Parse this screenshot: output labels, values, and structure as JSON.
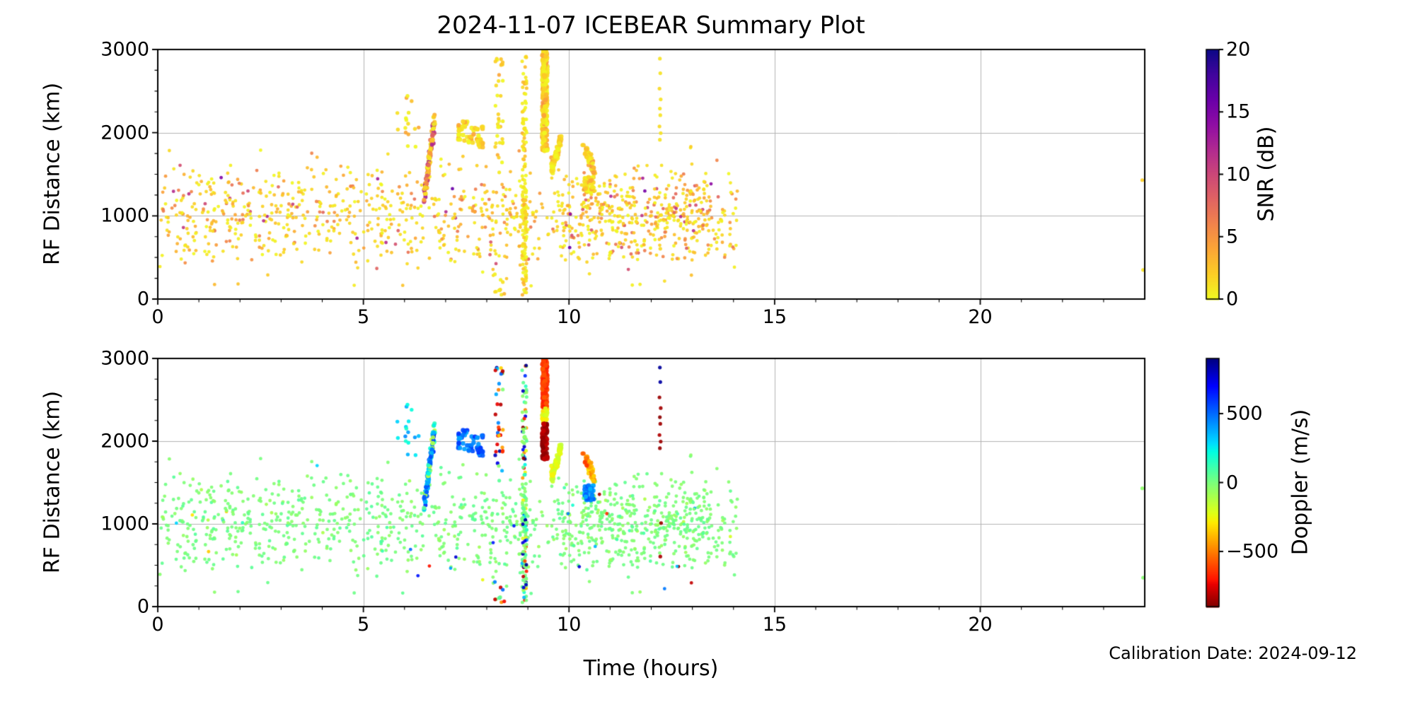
{
  "title": "2024-11-07 ICEBEAR Summary Plot",
  "footer": {
    "calibration_note": "Calibration Date: 2024-09-12"
  },
  "chart_data": {
    "type": "scatter",
    "title": "2024-11-07 ICEBEAR Summary Plot",
    "xlabel": "Time (hours)",
    "x": {
      "lim": [
        0,
        24
      ],
      "major_ticks": [
        0,
        5,
        10,
        15,
        20
      ],
      "minor_step": 1
    },
    "grid": true,
    "panels": [
      {
        "name": "snr",
        "ylabel": "RF Distance (km)",
        "ylim": [
          0,
          3000
        ],
        "yticks": [
          0,
          1000,
          2000,
          3000
        ],
        "y_minor_step": 250,
        "color_by": "snr",
        "colorbar": {
          "label": "SNR (dB)",
          "clim": [
            0,
            20
          ],
          "ticks": [
            0,
            5,
            10,
            15,
            20
          ],
          "colormap": "plasma_r"
        }
      },
      {
        "name": "doppler",
        "ylabel": "RF Distance (km)",
        "ylim": [
          0,
          3000
        ],
        "yticks": [
          0,
          1000,
          2000,
          3000
        ],
        "y_minor_step": 250,
        "color_by": "doppler",
        "colorbar": {
          "label": "Doppler (m/s)",
          "clim": [
            -900,
            900
          ],
          "ticks": [
            -500,
            0,
            500
          ],
          "colormap": "jet_r"
        }
      }
    ],
    "colormaps": {
      "plasma": [
        [
          0,
          "#0d0887"
        ],
        [
          0.1,
          "#41049d"
        ],
        [
          0.2,
          "#6a00a8"
        ],
        [
          0.3,
          "#8f0da4"
        ],
        [
          0.4,
          "#b12a90"
        ],
        [
          0.5,
          "#cc4778"
        ],
        [
          0.6,
          "#e16462"
        ],
        [
          0.7,
          "#f2844b"
        ],
        [
          0.8,
          "#fca636"
        ],
        [
          0.9,
          "#fcce25"
        ],
        [
          1,
          "#f0f921"
        ]
      ],
      "jet": [
        [
          0,
          "#000080"
        ],
        [
          0.11,
          "#0000ff"
        ],
        [
          0.34,
          "#00dbff"
        ],
        [
          0.375,
          "#00ffe2"
        ],
        [
          0.5,
          "#7bff7b"
        ],
        [
          0.625,
          "#e2ff14"
        ],
        [
          0.66,
          "#ffec00"
        ],
        [
          0.89,
          "#ff1300"
        ],
        [
          0.91,
          "#e80000"
        ],
        [
          1,
          "#800000"
        ]
      ]
    },
    "seed": 20241107,
    "features": [
      {
        "name": "main-band",
        "count": 950,
        "t": [
          0.05,
          14.1
        ],
        "rf": {
          "tri": [
            330,
            1000,
            1680
          ],
          "out": {
            "frac": 0.1,
            "u": [
              150,
              1850
            ]
          }
        },
        "snr": {
          "exp": [
            2.5,
            16
          ]
        },
        "dop": {
          "gauss": [
            0,
            35
          ],
          "out": {
            "frac": 0.02,
            "u": [
              -420,
              420
            ]
          }
        },
        "r": 2.4
      },
      {
        "name": "late-band",
        "count": 240,
        "t": [
          9.85,
          13.5
        ],
        "rf": {
          "tri": [
            380,
            950,
            1650
          ]
        },
        "snr": {
          "exp": [
            3,
            14
          ]
        },
        "dop": {
          "gauss": [
            0,
            35
          ]
        },
        "r": 2.4
      },
      {
        "name": "slant-streak-6p6",
        "count": 140,
        "t": [
          6.47,
          6.74
        ],
        "rf": {
          "lin": [
            1190,
            2170,
            65
          ]
        },
        "snr": {
          "mix": [
            {
              "w": 0.65,
              "exp": [
                2.5,
                6
              ]
            },
            {
              "w": 0.35,
              "u": [
                6,
                13
              ]
            }
          ]
        },
        "dop": {
          "mix": [
            {
              "w": 0.6,
              "u": [
                320,
                640
              ]
            },
            {
              "w": 0.25,
              "u": [
                80,
                300
              ]
            },
            {
              "w": 0.15,
              "u": [
                -200,
                60
              ]
            }
          ]
        },
        "r": 3
      },
      {
        "name": "high-cluster-6p1",
        "count": 16,
        "t": [
          5.8,
          6.35
        ],
        "rf": {
          "u": [
            1830,
            2480
          ]
        },
        "snr": {
          "exp": [
            1.5,
            4
          ]
        },
        "dop": {
          "u": [
            150,
            450
          ]
        },
        "r": 2.7
      },
      {
        "name": "blue-blobs-7p4",
        "count": 25,
        "t": [
          7.3,
          7.55
        ],
        "rf": {
          "u": [
            1900,
            2140
          ]
        },
        "snr": {
          "exp": [
            1.5,
            4
          ]
        },
        "dop": {
          "u": [
            380,
            620
          ]
        },
        "r": 3.2
      },
      {
        "name": "blue-blobs-7p7",
        "count": 30,
        "t": [
          7.55,
          7.92
        ],
        "rf": {
          "u": [
            1820,
            2070
          ]
        },
        "snr": {
          "exp": [
            1.5,
            4
          ]
        },
        "dop": {
          "u": [
            380,
            620
          ]
        },
        "r": 3.2
      },
      {
        "name": "mixed-column-8p3",
        "count": 34,
        "t": [
          8.2,
          8.4
        ],
        "rf": {
          "u": [
            1500,
            2950
          ]
        },
        "snr": {
          "exp": [
            1.5,
            4
          ]
        },
        "dop": {
          "mix": [
            {
              "w": 0.5,
              "u": [
                -880,
                -620
              ]
            },
            {
              "w": 0.12,
              "u": [
                -500,
                -250
              ]
            },
            {
              "w": 0.12,
              "u": [
                320,
                520
              ]
            },
            {
              "w": 0.14,
              "u": [
                700,
                880
              ]
            },
            {
              "w": 0.12,
              "u": [
                -80,
                80
              ]
            }
          ]
        },
        "r": 2.6
      },
      {
        "name": "mixed-column-8p3-low",
        "count": 10,
        "t": [
          8.15,
          8.45
        ],
        "rf": {
          "u": [
            40,
            300
          ]
        },
        "snr": {
          "exp": [
            1.5,
            4
          ]
        },
        "dop": {
          "mix": [
            {
              "w": 0.5,
              "u": [
                -880,
                -620
              ]
            },
            {
              "w": 0.15,
              "u": [
                -500,
                -250
              ]
            },
            {
              "w": 0.15,
              "u": [
                320,
                520
              ]
            },
            {
              "w": 0.2,
              "u": [
                -80,
                80
              ]
            }
          ]
        },
        "r": 2.6
      },
      {
        "name": "dotted-column-8p9",
        "count": 150,
        "t": [
          8.86,
          8.97
        ],
        "rf": {
          "bands": [
            {
              "w": 0.62,
              "u": [
                40,
                1500
              ]
            },
            {
              "w": 0.38,
              "u": [
                1500,
                2950
              ]
            }
          ]
        },
        "snr": {
          "exp": [
            1.2,
            3.5
          ]
        },
        "dop": {
          "mix": [
            {
              "w": 0.45,
              "u": [
                -70,
                70
              ]
            },
            {
              "w": 0.55,
              "u": [
                -900,
                900
              ]
            }
          ]
        },
        "r": 2.5
      },
      {
        "name": "thick-streak-9p4",
        "count": 230,
        "t": [
          9.35,
          9.47
        ],
        "rf": {
          "u": [
            1780,
            2980
          ]
        },
        "snr": {
          "exp": [
            2,
            5
          ]
        },
        "dop": {
          "by_rf": [
            [
              2400,
              2980,
              -700,
              -550
            ],
            [
              2220,
              2400,
              -320,
              -130
            ],
            [
              1780,
              2220,
              -900,
              -790
            ]
          ]
        },
        "r": 3.4
      },
      {
        "name": "diag-blob-9p7",
        "count": 60,
        "t": [
          9.56,
          9.82
        ],
        "rf": {
          "lin": [
            1540,
            1930,
            45
          ]
        },
        "snr": {
          "exp": [
            1.5,
            4
          ]
        },
        "dop": {
          "u": [
            -280,
            -130
          ]
        },
        "r": 3.2
      },
      {
        "name": "streak-10p5",
        "count": 45,
        "t": [
          10.4,
          10.62
        ],
        "rf": {
          "lin": [
            1800,
            1545,
            40
          ]
        },
        "snr": {
          "exp": [
            2,
            5
          ]
        },
        "dop": {
          "u": [
            -520,
            -290
          ]
        },
        "r": 3
      },
      {
        "name": "orange-dots-10p35",
        "count": 6,
        "t": [
          10.28,
          10.45
        ],
        "rf": {
          "u": [
            1700,
            1870
          ]
        },
        "snr": {
          "u": [
            1,
            3
          ]
        },
        "dop": {
          "u": [
            -660,
            -520
          ]
        },
        "r": 3
      },
      {
        "name": "cyan-blob-10p5",
        "count": 35,
        "t": [
          10.38,
          10.6
        ],
        "rf": {
          "u": [
            1280,
            1470
          ]
        },
        "snr": {
          "exp": [
            1.5,
            4
          ]
        },
        "dop": {
          "u": [
            350,
            560
          ]
        },
        "r": 3.2
      },
      {
        "name": "extreme-speckles",
        "count": 16,
        "t": [
          5.8,
          13.4
        ],
        "rf": {
          "u": [
            100,
            1500
          ]
        },
        "snr": {
          "exp": [
            2,
            5
          ]
        },
        "dop": {
          "mix": [
            {
              "w": 0.4,
              "u": [
                -880,
                -600
              ]
            },
            {
              "w": 0.3,
              "u": [
                600,
                880
              ]
            },
            {
              "w": 0.3,
              "u": [
                300,
                500
              ]
            }
          ]
        },
        "r": 2.4
      },
      {
        "name": "sparse-column-12p2",
        "r": 2.6,
        "pts": [
          [
            12.21,
            2890,
            1,
            860
          ],
          [
            12.22,
            2715,
            1,
            845
          ],
          [
            12.2,
            2530,
            1.5,
            -860
          ],
          [
            12.23,
            2400,
            1,
            -845
          ],
          [
            12.21,
            2290,
            1,
            -880
          ],
          [
            12.22,
            2210,
            1,
            -850
          ],
          [
            12.2,
            2075,
            1.5,
            -825
          ],
          [
            12.23,
            1995,
            1,
            -855
          ],
          [
            12.21,
            1915,
            1,
            -865
          ],
          [
            12.24,
            1010,
            1,
            -850
          ],
          [
            12.22,
            605,
            1.5,
            -835
          ]
        ]
      },
      {
        "name": "edge-dots-23p9",
        "r": 2.6,
        "pts": [
          [
            23.94,
            1430,
            2,
            -40
          ],
          [
            23.96,
            350,
            1,
            -25
          ]
        ]
      }
    ]
  }
}
